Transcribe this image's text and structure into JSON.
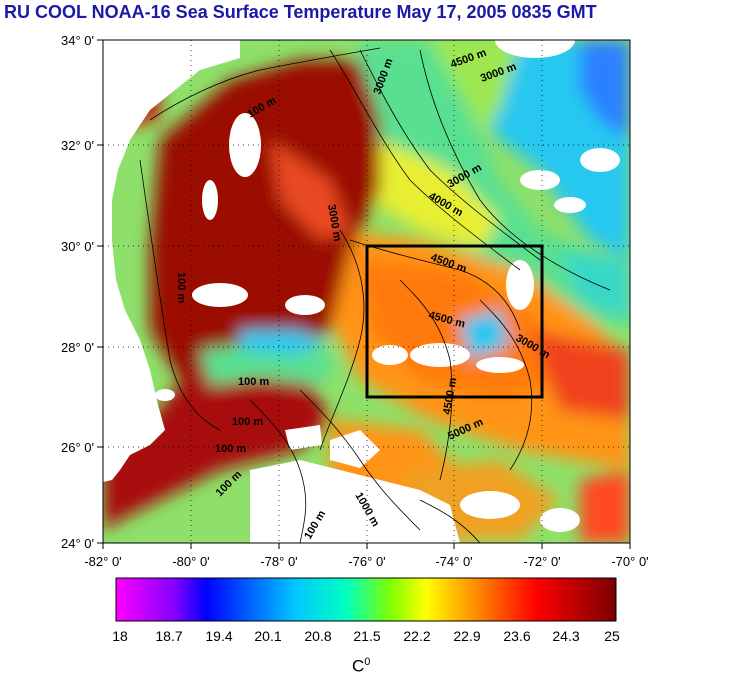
{
  "title": "RU COOL  NOAA-16 Sea Surface Temperature May 17, 2005 0835 GMT",
  "map": {
    "lon_ticks": [
      "-82° 0'",
      "-80° 0'",
      "-78° 0'",
      "-76° 0'",
      "-74° 0'",
      "-72° 0'",
      "-70° 0'"
    ],
    "lat_ticks": [
      "34° 0'",
      "32° 0'",
      "30° 0'",
      "28° 0'",
      "26° 0'",
      "24° 0'"
    ],
    "lon_range": [
      -82,
      -70
    ],
    "lat_range": [
      24,
      34
    ],
    "study_box": {
      "lon": [
        -76,
        -72
      ],
      "lat": [
        27,
        30
      ]
    },
    "contour_labels": [
      "100 m",
      "3000 m",
      "4500 m",
      "3000 m",
      "4000 m",
      "3000 m",
      "4500 m",
      "4500 m",
      "3000 m",
      "100 m",
      "100 m",
      "100 m",
      "100 m",
      "4500 m",
      "3000 m",
      "5000 m",
      "100 m",
      "1000 m",
      "100 m"
    ],
    "colors": {
      "land": "#ffffff",
      "cloud": "#ffffff",
      "frame": "#000000"
    }
  },
  "colorbar": {
    "ticks": [
      "18",
      "18.7",
      "19.4",
      "20.1",
      "20.8",
      "21.5",
      "22.2",
      "22.9",
      "23.6",
      "24.3",
      "25"
    ],
    "unit_base": "C",
    "unit_sup": "0",
    "colormap": [
      "#ff00ff",
      "#0000ff",
      "#00ffff",
      "#ffff00",
      "#ff0000",
      "#800000"
    ]
  }
}
